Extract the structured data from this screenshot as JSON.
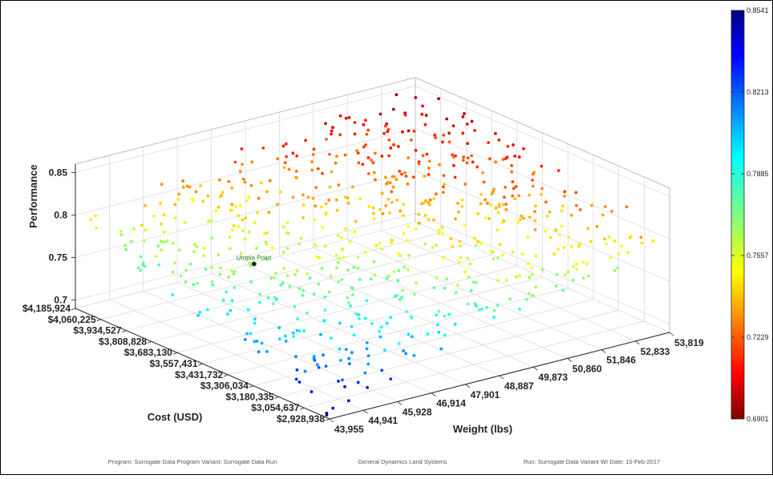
{
  "chart_data": {
    "type": "scatter",
    "projection": "3d",
    "xlabel": "Weight (lbs)",
    "ylabel": "Cost (USD)",
    "zlabel": "Performance",
    "x_ticks": [
      "43,955",
      "44,941",
      "45,928",
      "46,914",
      "47,901",
      "48,887",
      "49,873",
      "50,860",
      "51,846",
      "52,833",
      "53,819"
    ],
    "y_ticks": [
      "$2,928,938",
      "$3,054,637",
      "$3,180,335",
      "$3,306,034",
      "$3,431,732",
      "$3,557,431",
      "$3,683,130",
      "$3,808,828",
      "$3,934,527",
      "$4,060,225",
      "$4,185,924"
    ],
    "z_ticks": [
      "0.7",
      "0.75",
      "0.8",
      "0.85"
    ],
    "xlim": [
      43955,
      53819
    ],
    "ylim": [
      2928938,
      4185924
    ],
    "zlim": [
      0.69,
      0.86
    ],
    "grid": true,
    "colormap": "jet",
    "colorbar": {
      "ticks": [
        "0.6901",
        "0.7229",
        "0.7557",
        "0.7885",
        "0.8213",
        "0.8541"
      ],
      "min": 0.6901,
      "max": 0.8541
    },
    "annotation": {
      "label": "Utopia Point",
      "x": 45700,
      "y": 3600000,
      "z": 0.785,
      "color": "#2d7a1e"
    },
    "points_generated": true,
    "point_count": 720
  },
  "footer": {
    "program": "Program: Surrogate Data Program  Variant: Surrogate Data Run",
    "company": "General Dynamics Land Systems",
    "run": "Run: Surrogate Data Variant WI   Date: 15-Feb-2017"
  }
}
